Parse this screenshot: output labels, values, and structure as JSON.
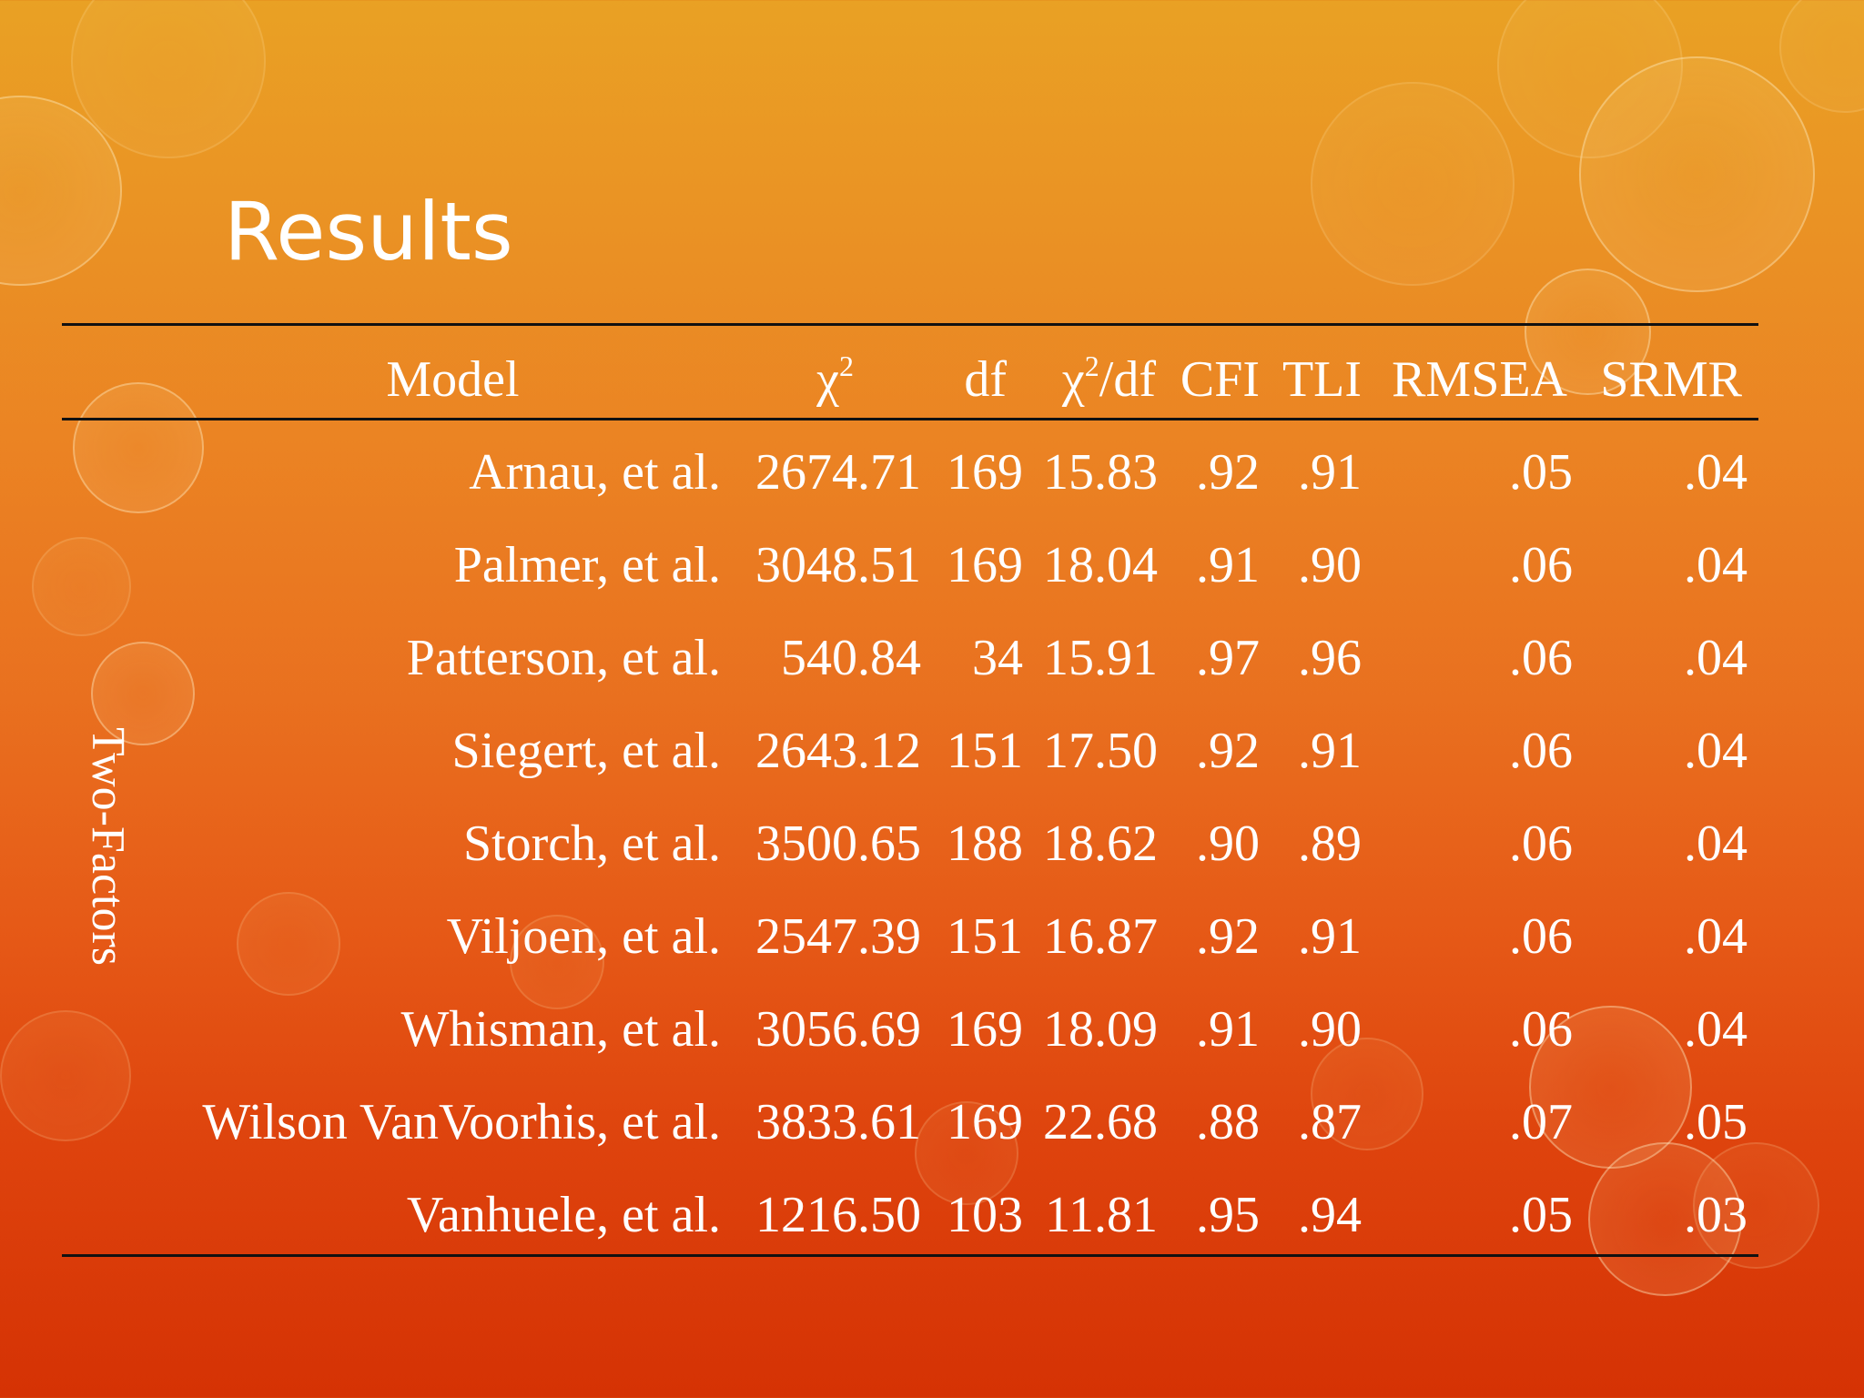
{
  "slide": {
    "title": "Results",
    "group_label": "Two-Factors"
  },
  "table": {
    "headers": {
      "model": "Model",
      "chi2_base": "χ",
      "chi2_sup": "2",
      "df": "df",
      "chi2df_base": "χ",
      "chi2df_sup": "2",
      "chi2df_rest": "/df",
      "cfi": "CFI",
      "tli": "TLI",
      "rmsea": "RMSEA",
      "srmr": "SRMR"
    },
    "rows": [
      {
        "model": "Arnau, et al.",
        "chi2": "2674.71",
        "df": "169",
        "chi2df": "15.83",
        "cfi": ".92",
        "tli": ".91",
        "rmsea": ".05",
        "srmr": ".04"
      },
      {
        "model": "Palmer, et al.",
        "chi2": "3048.51",
        "df": "169",
        "chi2df": "18.04",
        "cfi": ".91",
        "tli": ".90",
        "rmsea": ".06",
        "srmr": ".04"
      },
      {
        "model": "Patterson, et al.",
        "chi2": "540.84",
        "df": "34",
        "chi2df": "15.91",
        "cfi": ".97",
        "tli": ".96",
        "rmsea": ".06",
        "srmr": ".04"
      },
      {
        "model": "Siegert, et al.",
        "chi2": "2643.12",
        "df": "151",
        "chi2df": "17.50",
        "cfi": ".92",
        "tli": ".91",
        "rmsea": ".06",
        "srmr": ".04"
      },
      {
        "model": "Storch, et al.",
        "chi2": "3500.65",
        "df": "188",
        "chi2df": "18.62",
        "cfi": ".90",
        "tli": ".89",
        "rmsea": ".06",
        "srmr": ".04"
      },
      {
        "model": "Viljoen, et al.",
        "chi2": "2547.39",
        "df": "151",
        "chi2df": "16.87",
        "cfi": ".92",
        "tli": ".91",
        "rmsea": ".06",
        "srmr": ".04"
      },
      {
        "model": "Whisman, et al.",
        "chi2": "3056.69",
        "df": "169",
        "chi2df": "18.09",
        "cfi": ".91",
        "tli": ".90",
        "rmsea": ".06",
        "srmr": ".04"
      },
      {
        "model": "Wilson VanVoorhis, et al.",
        "chi2": "3833.61",
        "df": "169",
        "chi2df": "22.68",
        "cfi": ".88",
        "tli": ".87",
        "rmsea": ".07",
        "srmr": ".05"
      },
      {
        "model": "Vanhuele, et al.",
        "chi2": "1216.50",
        "df": "103",
        "chi2df": "11.81",
        "cfi": ".95",
        "tli": ".94",
        "rmsea": ".05",
        "srmr": ".03"
      }
    ]
  },
  "theme": {
    "text_color": "#ffffff",
    "rule_color": "#111111",
    "background_top": "#e9a124",
    "background_bottom": "#d53204"
  }
}
